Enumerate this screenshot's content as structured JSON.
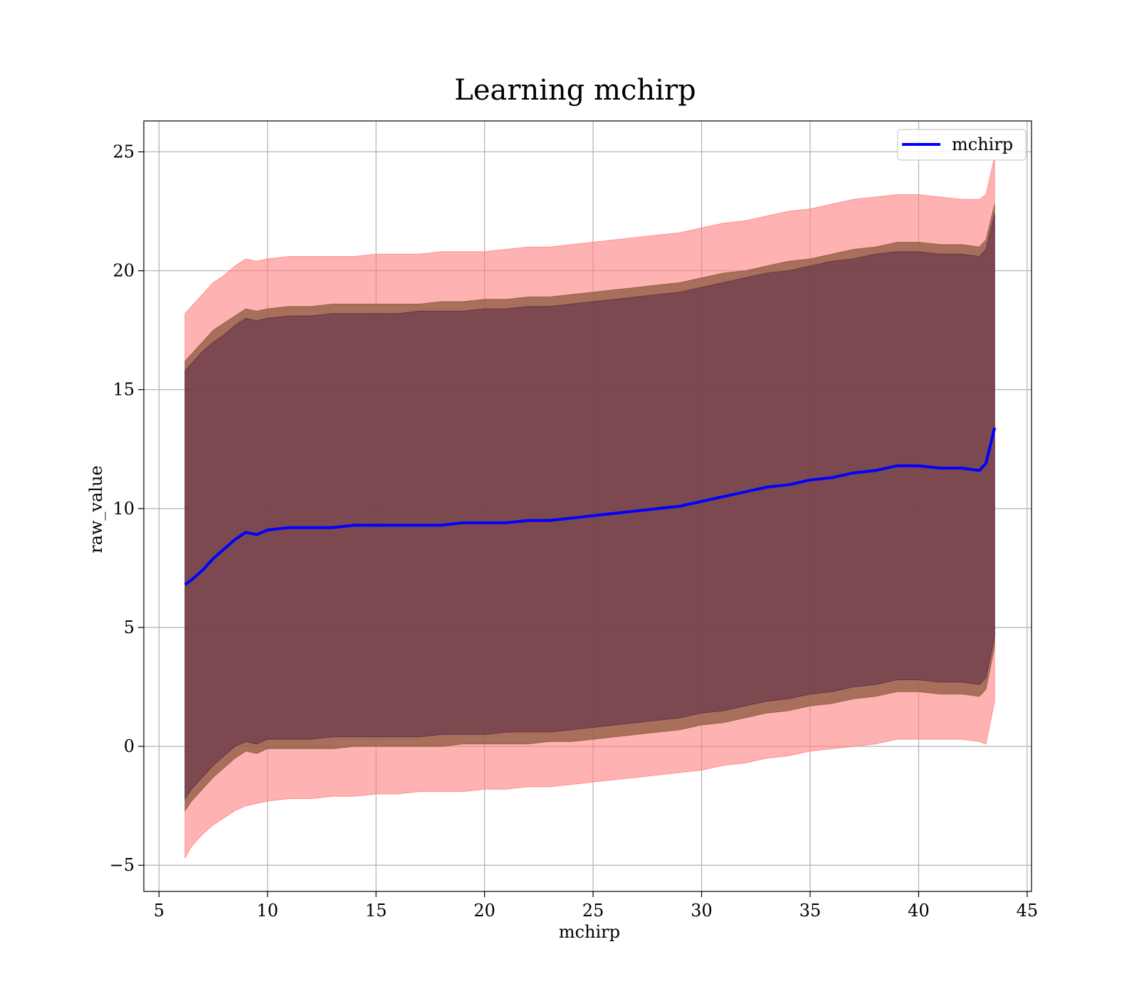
{
  "chart_data": {
    "type": "area",
    "title": "Learning mchirp",
    "xlabel": "mchirp",
    "ylabel": "raw_value",
    "xlim": [
      4.3,
      45.2
    ],
    "ylim": [
      -6.1,
      26.3
    ],
    "xticks": [
      5,
      10,
      15,
      20,
      25,
      30,
      35,
      40,
      45
    ],
    "xtick_labels": [
      "5",
      "10",
      "15",
      "20",
      "25",
      "30",
      "35",
      "40",
      "45"
    ],
    "yticks": [
      -5,
      0,
      5,
      10,
      15,
      20,
      25
    ],
    "ytick_labels": [
      "−5",
      "0",
      "5",
      "10",
      "15",
      "20",
      "25"
    ],
    "grid": true,
    "legend": {
      "placement": "top-right",
      "entries": [
        "mchirp"
      ]
    },
    "colors": {
      "line": "#0000ff",
      "band_outer": "#ff7f7f",
      "band_middle": "#8b5a3c",
      "band_inner": "#5a2a4a",
      "grid": "#b0b0b0"
    },
    "x": [
      6.2,
      6.5,
      7.0,
      7.5,
      8.0,
      8.5,
      9.0,
      9.5,
      10.0,
      11.0,
      12.0,
      13.0,
      14.0,
      15.0,
      16.0,
      17.0,
      18.0,
      19.0,
      20.0,
      21.0,
      22.0,
      23.0,
      24.0,
      25.0,
      26.0,
      27.0,
      28.0,
      29.0,
      30.0,
      31.0,
      32.0,
      33.0,
      34.0,
      35.0,
      36.0,
      37.0,
      38.0,
      39.0,
      40.0,
      41.0,
      42.0,
      42.8,
      43.1,
      43.5
    ],
    "series": [
      {
        "name": "mchirp",
        "role": "mean",
        "values": [
          6.8,
          7.0,
          7.4,
          7.9,
          8.3,
          8.7,
          9.0,
          8.9,
          9.1,
          9.2,
          9.2,
          9.2,
          9.3,
          9.3,
          9.3,
          9.3,
          9.3,
          9.4,
          9.4,
          9.4,
          9.5,
          9.5,
          9.6,
          9.7,
          9.8,
          9.9,
          10.0,
          10.1,
          10.3,
          10.5,
          10.7,
          10.9,
          11.0,
          11.2,
          11.3,
          11.5,
          11.6,
          11.8,
          11.8,
          11.7,
          11.7,
          11.6,
          11.9,
          13.4
        ]
      }
    ],
    "bands": [
      {
        "level": "outer",
        "lower": [
          -4.7,
          -4.2,
          -3.7,
          -3.3,
          -3.0,
          -2.7,
          -2.5,
          -2.4,
          -2.3,
          -2.2,
          -2.2,
          -2.1,
          -2.1,
          -2.0,
          -2.0,
          -1.9,
          -1.9,
          -1.9,
          -1.8,
          -1.8,
          -1.7,
          -1.7,
          -1.6,
          -1.5,
          -1.4,
          -1.3,
          -1.2,
          -1.1,
          -1.0,
          -0.8,
          -0.7,
          -0.5,
          -0.4,
          -0.2,
          -0.1,
          0.0,
          0.1,
          0.3,
          0.3,
          0.3,
          0.3,
          0.2,
          0.1,
          1.9
        ],
        "upper": [
          18.2,
          18.5,
          19.0,
          19.5,
          19.8,
          20.2,
          20.5,
          20.4,
          20.5,
          20.6,
          20.6,
          20.6,
          20.6,
          20.7,
          20.7,
          20.7,
          20.8,
          20.8,
          20.8,
          20.9,
          21.0,
          21.0,
          21.1,
          21.2,
          21.3,
          21.4,
          21.5,
          21.6,
          21.8,
          22.0,
          22.1,
          22.3,
          22.5,
          22.6,
          22.8,
          23.0,
          23.1,
          23.2,
          23.2,
          23.1,
          23.0,
          23.0,
          23.2,
          24.8
        ]
      },
      {
        "level": "middle",
        "lower": [
          -2.7,
          -2.3,
          -1.8,
          -1.3,
          -0.9,
          -0.5,
          -0.2,
          -0.3,
          -0.1,
          -0.1,
          -0.1,
          -0.1,
          0.0,
          0.0,
          0.0,
          0.0,
          0.0,
          0.1,
          0.1,
          0.1,
          0.1,
          0.2,
          0.2,
          0.3,
          0.4,
          0.5,
          0.6,
          0.7,
          0.9,
          1.0,
          1.2,
          1.4,
          1.5,
          1.7,
          1.8,
          2.0,
          2.1,
          2.3,
          2.3,
          2.2,
          2.2,
          2.1,
          2.4,
          4.2
        ],
        "upper": [
          16.2,
          16.5,
          17.0,
          17.5,
          17.8,
          18.1,
          18.4,
          18.3,
          18.4,
          18.5,
          18.5,
          18.6,
          18.6,
          18.6,
          18.6,
          18.6,
          18.7,
          18.7,
          18.8,
          18.8,
          18.9,
          18.9,
          19.0,
          19.1,
          19.2,
          19.3,
          19.4,
          19.5,
          19.7,
          19.9,
          20.0,
          20.2,
          20.4,
          20.5,
          20.7,
          20.9,
          21.0,
          21.2,
          21.2,
          21.1,
          21.1,
          21.0,
          21.3,
          22.8
        ]
      },
      {
        "level": "inner",
        "lower": [
          -2.2,
          -1.8,
          -1.3,
          -0.8,
          -0.4,
          0.0,
          0.2,
          0.1,
          0.3,
          0.3,
          0.3,
          0.4,
          0.4,
          0.4,
          0.4,
          0.4,
          0.5,
          0.5,
          0.5,
          0.6,
          0.6,
          0.6,
          0.7,
          0.8,
          0.9,
          1.0,
          1.1,
          1.2,
          1.4,
          1.5,
          1.7,
          1.9,
          2.0,
          2.2,
          2.3,
          2.5,
          2.6,
          2.8,
          2.8,
          2.7,
          2.7,
          2.6,
          2.9,
          4.6
        ],
        "upper": [
          15.8,
          16.1,
          16.6,
          17.0,
          17.3,
          17.7,
          18.0,
          17.9,
          18.0,
          18.1,
          18.1,
          18.2,
          18.2,
          18.2,
          18.2,
          18.3,
          18.3,
          18.3,
          18.4,
          18.4,
          18.5,
          18.5,
          18.6,
          18.7,
          18.8,
          18.9,
          19.0,
          19.1,
          19.3,
          19.5,
          19.7,
          19.9,
          20.0,
          20.2,
          20.4,
          20.5,
          20.7,
          20.8,
          20.8,
          20.7,
          20.7,
          20.6,
          20.9,
          22.4
        ]
      }
    ]
  }
}
